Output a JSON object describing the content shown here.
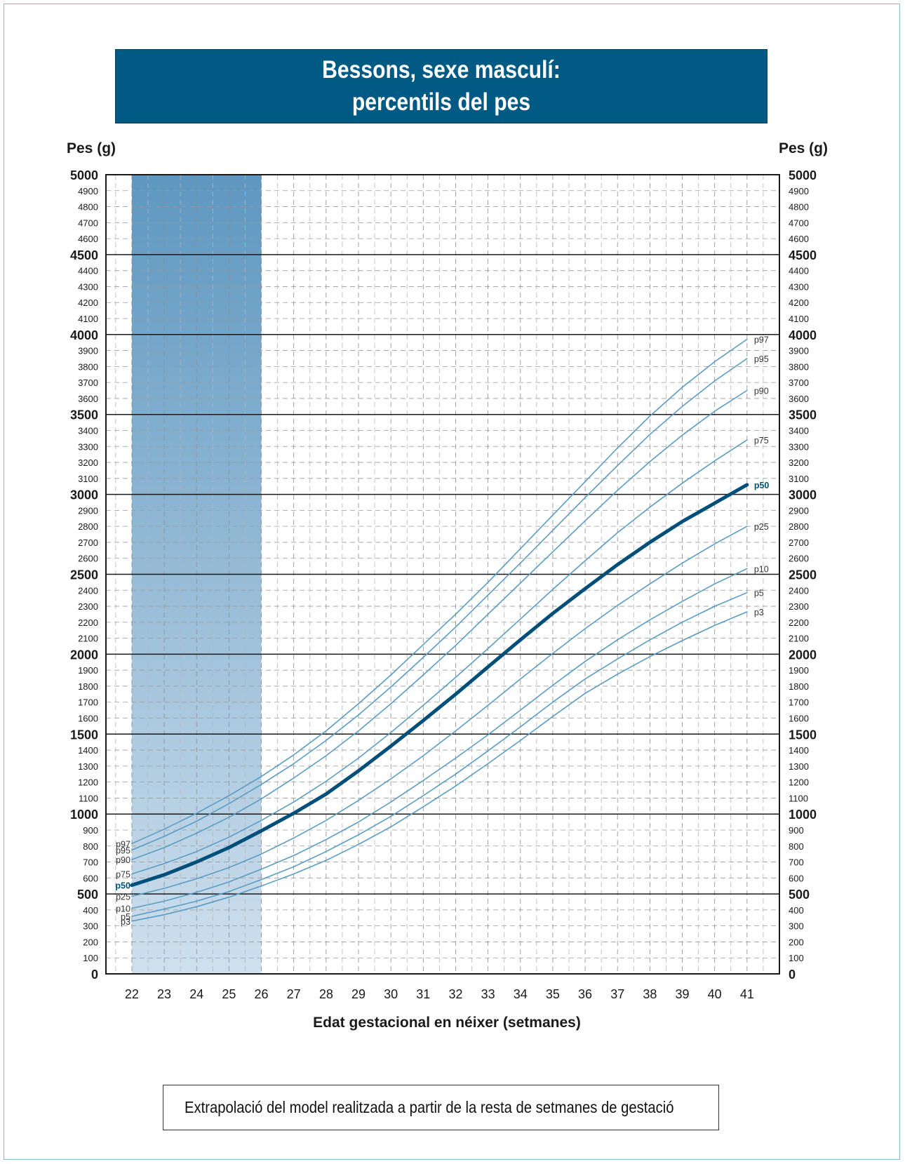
{
  "chart_data": {
    "type": "line",
    "title_lines": [
      "Bessons, sexe masculí:",
      "percentils del pes"
    ],
    "ylabel_left": "Pes (g)",
    "ylabel_right": "Pes (g)",
    "xlabel": "Edat gestacional en néixer (setmanes)",
    "x": [
      22,
      23,
      24,
      25,
      26,
      27,
      28,
      29,
      30,
      31,
      32,
      33,
      34,
      35,
      36,
      37,
      38,
      39,
      40,
      41
    ],
    "xlim": [
      21.2,
      42.0
    ],
    "ylim": [
      0,
      5000
    ],
    "y_major_ticks": [
      0,
      500,
      1000,
      1500,
      2000,
      2500,
      3000,
      3500,
      4000,
      4500,
      5000
    ],
    "y_minor_ticks": [
      100,
      200,
      300,
      400,
      600,
      700,
      800,
      900,
      1100,
      1200,
      1300,
      1400,
      1600,
      1700,
      1800,
      1900,
      2100,
      2200,
      2300,
      2400,
      2600,
      2700,
      2800,
      2900,
      3100,
      3200,
      3300,
      3400,
      3600,
      3700,
      3800,
      3900,
      4100,
      4200,
      4300,
      4400,
      4600,
      4700,
      4800,
      4900
    ],
    "grid": true,
    "extrapolated_region": [
      22,
      26
    ],
    "series": [
      {
        "name": "p97",
        "highlight": false,
        "values": [
          815,
          905,
          1005,
          1115,
          1235,
          1370,
          1520,
          1690,
          1870,
          2060,
          2250,
          2450,
          2660,
          2870,
          3080,
          3290,
          3490,
          3670,
          3830,
          3970
        ]
      },
      {
        "name": "p95",
        "highlight": false,
        "values": [
          775,
          860,
          955,
          1065,
          1185,
          1315,
          1460,
          1620,
          1795,
          1980,
          2170,
          2370,
          2570,
          2775,
          2980,
          3180,
          3375,
          3550,
          3710,
          3850
        ]
      },
      {
        "name": "p90",
        "highlight": false,
        "values": [
          715,
          790,
          880,
          980,
          1095,
          1225,
          1365,
          1520,
          1690,
          1870,
          2055,
          2250,
          2445,
          2640,
          2835,
          3025,
          3205,
          3370,
          3520,
          3650
        ]
      },
      {
        "name": "p75",
        "highlight": false,
        "values": [
          625,
          690,
          765,
          855,
          960,
          1075,
          1205,
          1350,
          1510,
          1680,
          1855,
          2035,
          2220,
          2405,
          2585,
          2760,
          2920,
          3070,
          3210,
          3340
        ]
      },
      {
        "name": "p50",
        "highlight": true,
        "values": [
          555,
          620,
          700,
          790,
          895,
          1005,
          1125,
          1270,
          1425,
          1585,
          1750,
          1920,
          2090,
          2255,
          2410,
          2560,
          2700,
          2830,
          2945,
          3060
        ]
      },
      {
        "name": "p25",
        "highlight": false,
        "values": [
          485,
          535,
          595,
          665,
          750,
          850,
          960,
          1085,
          1220,
          1365,
          1520,
          1680,
          1845,
          2005,
          2160,
          2305,
          2440,
          2570,
          2690,
          2800
        ]
      },
      {
        "name": "p10",
        "highlight": false,
        "values": [
          410,
          455,
          510,
          575,
          655,
          740,
          840,
          950,
          1075,
          1210,
          1350,
          1495,
          1650,
          1805,
          1955,
          2090,
          2215,
          2330,
          2440,
          2535
        ]
      },
      {
        "name": "p5",
        "highlight": false,
        "values": [
          360,
          405,
          455,
          515,
          590,
          670,
          765,
          870,
          985,
          1115,
          1250,
          1395,
          1545,
          1700,
          1845,
          1970,
          2090,
          2200,
          2300,
          2385
        ]
      },
      {
        "name": "p3",
        "highlight": false,
        "values": [
          330,
          370,
          420,
          480,
          550,
          625,
          710,
          810,
          920,
          1045,
          1175,
          1315,
          1460,
          1610,
          1755,
          1875,
          1985,
          2085,
          2180,
          2265
        ]
      }
    ],
    "colors": {
      "line": "#5a9cc4",
      "highlight": "#004f7a",
      "band_top": "#5d97c0",
      "band_bottom": "#cfe0ee",
      "banner": "#005a84"
    }
  },
  "legend": {
    "text": "Extrapolació del model realitzada a partir de la resta de setmanes de gestació"
  }
}
